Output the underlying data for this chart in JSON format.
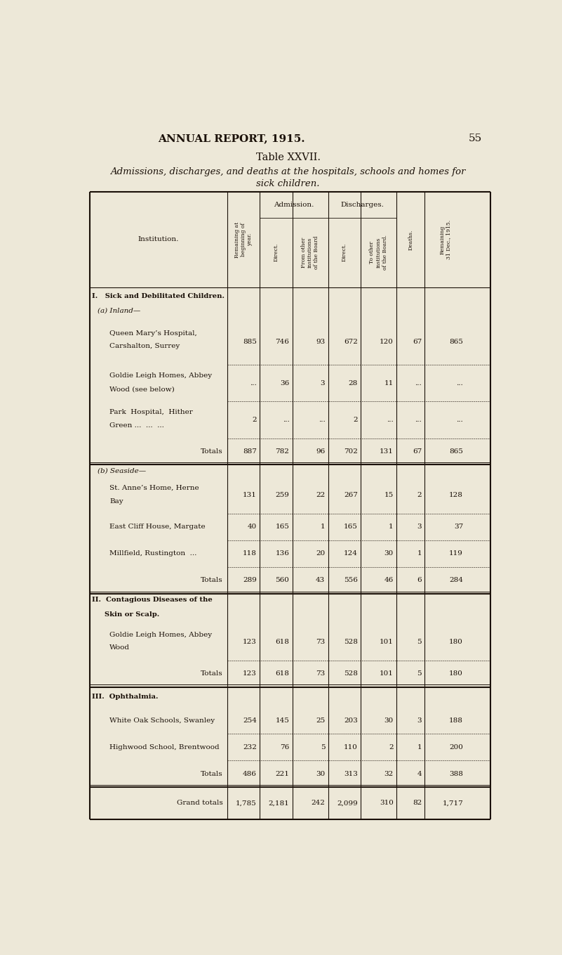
{
  "page_header": "ANNUAL REPORT, 1915.",
  "page_number": "55",
  "table_title_line1": "Table XXVII.",
  "table_subtitle_line1": "Admissions, discharges, and deaths at the hospitals, schools and homes for",
  "table_subtitle_line2": "sick children.",
  "admission_group": "Admission.",
  "discharge_group": "Discharges.",
  "bg_color": "#ede8d8",
  "text_color": "#1a1008",
  "line_color": "#1a1008"
}
